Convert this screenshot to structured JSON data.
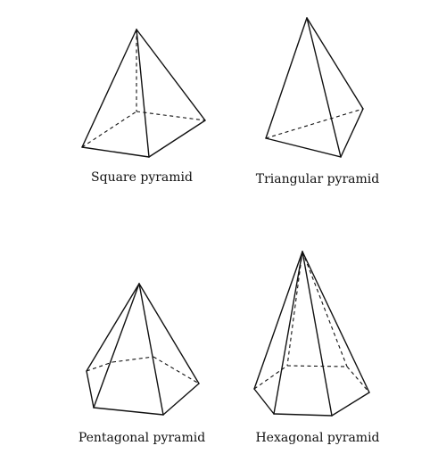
{
  "figure": {
    "pyramids": [
      {
        "id": "square",
        "caption": "Square pyramid"
      },
      {
        "id": "triangular",
        "caption": "Triangular pyramid"
      },
      {
        "id": "pentagonal",
        "caption": "Pentagonal pyramid"
      },
      {
        "id": "hexagonal",
        "caption": "Hexagonal pyramid"
      }
    ]
  }
}
